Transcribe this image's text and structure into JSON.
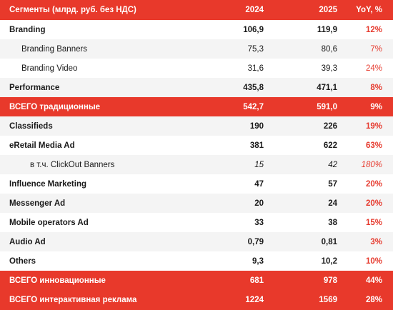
{
  "header": {
    "segment": "Сегменты (млрд. руб. без НДС)",
    "y2024": "2024",
    "y2025": "2025",
    "yoy": "YoY, %"
  },
  "rows": [
    {
      "name": "Branding",
      "v2024": "106,9",
      "v2025": "119,9",
      "yoy": "12%",
      "style": "bold"
    },
    {
      "name": "Branding Banners",
      "v2024": "75,3",
      "v2025": "80,6",
      "yoy": "7%",
      "style": "sub"
    },
    {
      "name": "Branding Video",
      "v2024": "31,6",
      "v2025": "39,3",
      "yoy": "24%",
      "style": "sub"
    },
    {
      "name": "Performance",
      "v2024": "435,8",
      "v2025": "471,1",
      "yoy": "8%",
      "style": "bold"
    },
    {
      "name": "ВСЕГО традиционные",
      "v2024": "542,7",
      "v2025": "591,0",
      "yoy": "9%",
      "style": "total"
    },
    {
      "name": "Classifieds",
      "v2024": "190",
      "v2025": "226",
      "yoy": "19%",
      "style": "bold"
    },
    {
      "name": "eRetail Media Ad",
      "v2024": "381",
      "v2025": "622",
      "yoy": "63%",
      "style": "bold"
    },
    {
      "name": "в т.ч. ClickOut Banners",
      "v2024": "15",
      "v2025": "42",
      "yoy": "180%",
      "style": "note"
    },
    {
      "name": "Influence Marketing",
      "v2024": "47",
      "v2025": "57",
      "yoy": "20%",
      "style": "bold"
    },
    {
      "name": "Messenger Ad",
      "v2024": "20",
      "v2025": "24",
      "yoy": "20%",
      "style": "bold"
    },
    {
      "name": "Mobile operators Ad",
      "v2024": "33",
      "v2025": "38",
      "yoy": "15%",
      "style": "bold"
    },
    {
      "name": "Audio Ad",
      "v2024": "0,79",
      "v2025": "0,81",
      "yoy": "3%",
      "style": "bold"
    },
    {
      "name": "Others",
      "v2024": "9,3",
      "v2025": "10,2",
      "yoy": "10%",
      "style": "bold"
    },
    {
      "name": "ВСЕГО инновационные",
      "v2024": "681",
      "v2025": "978",
      "yoy": "44%",
      "style": "total"
    },
    {
      "name": "ВСЕГО интерактивная реклама",
      "v2024": "1224",
      "v2025": "1569",
      "yoy": "28%",
      "style": "total"
    }
  ],
  "colors": {
    "accent_red": "#e8392b",
    "yoy_text_red": "#e63a2e",
    "row_alt_bg": "#f4f4f4"
  }
}
